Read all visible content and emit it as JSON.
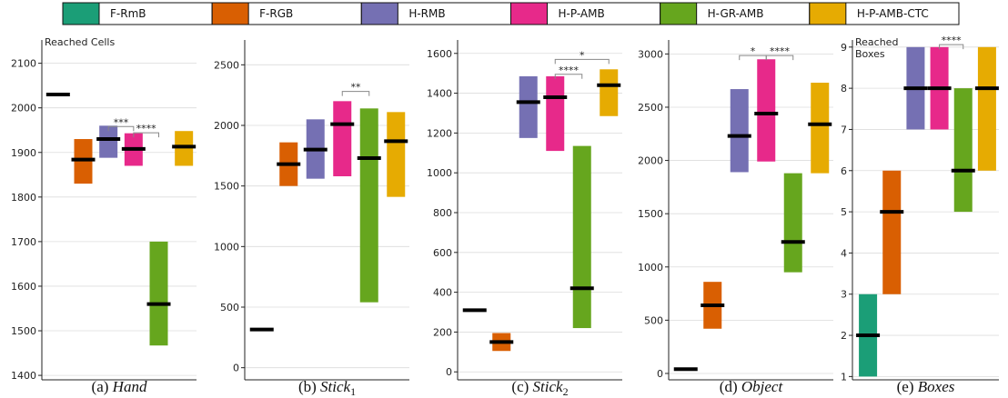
{
  "legend": [
    {
      "name": "F-RmB",
      "color": "#1b9e77"
    },
    {
      "name": "F-RGB",
      "color": "#d95f02"
    },
    {
      "name": "H-RMB",
      "color": "#7570b3"
    },
    {
      "name": "H-P-AMB",
      "color": "#e7298a"
    },
    {
      "name": "H-GR-AMB",
      "color": "#66a61e"
    },
    {
      "name": "H-P-AMB-CTC",
      "color": "#e6ab02"
    }
  ],
  "chart_data": [
    {
      "type": "bar",
      "caption": {
        "prefix": "(a) ",
        "main": "Hand",
        "sub": ""
      },
      "annotation": "Reached Cells",
      "ylim": [
        1390,
        2140
      ],
      "yticks": [
        1400,
        1500,
        1600,
        1700,
        1800,
        1900,
        2000,
        2100
      ],
      "ticklabels": [
        "1400",
        "1500",
        "1600",
        "1700",
        "1800",
        "1900",
        "2000",
        "2100"
      ],
      "series": [
        {
          "name": "F-RmB",
          "low": 2030,
          "high": 2030,
          "median": 2030
        },
        {
          "name": "F-RGB",
          "low": 1830,
          "high": 1930,
          "median": 1884
        },
        {
          "name": "H-RMB",
          "low": 1888,
          "high": 1960,
          "median": 1930
        },
        {
          "name": "H-P-AMB",
          "low": 1870,
          "high": 1943,
          "median": 1908
        },
        {
          "name": "H-GR-AMB",
          "low": 1467,
          "high": 1700,
          "median": 1560
        },
        {
          "name": "H-P-AMB-CTC",
          "low": 1870,
          "high": 1948,
          "median": 1913
        }
      ],
      "significance": [
        {
          "from": 2,
          "to": 3,
          "label": "***",
          "y": 1958
        },
        {
          "from": 3,
          "to": 4,
          "label": "****",
          "y": 1944
        }
      ]
    },
    {
      "type": "bar",
      "caption": {
        "prefix": "(b) ",
        "main": "Stick",
        "sub": "1"
      },
      "annotation": "",
      "ylim": [
        -100,
        2660
      ],
      "yticks": [
        0,
        500,
        1000,
        1500,
        2000,
        2500
      ],
      "ticklabels": [
        "0",
        "500",
        "1000",
        "1500",
        "2000",
        "2500"
      ],
      "series": [
        {
          "name": "F-RmB",
          "low": 315,
          "high": 315,
          "median": 315
        },
        {
          "name": "F-RGB",
          "low": 1500,
          "high": 1860,
          "median": 1680
        },
        {
          "name": "H-RMB",
          "low": 1560,
          "high": 2050,
          "median": 1800
        },
        {
          "name": "H-P-AMB",
          "low": 1580,
          "high": 2200,
          "median": 2010
        },
        {
          "name": "H-GR-AMB",
          "low": 540,
          "high": 2140,
          "median": 1730
        },
        {
          "name": "H-P-AMB-CTC",
          "low": 1410,
          "high": 2110,
          "median": 1870
        }
      ],
      "significance": [
        {
          "from": 3,
          "to": 4,
          "label": "**",
          "y": 2280
        }
      ]
    },
    {
      "type": "bar",
      "caption": {
        "prefix": "(c) ",
        "main": "Stick",
        "sub": "2"
      },
      "annotation": "",
      "ylim": [
        -40,
        1640
      ],
      "yticks": [
        0,
        200,
        400,
        600,
        800,
        1000,
        1200,
        1400,
        1600
      ],
      "ticklabels": [
        "0",
        "200",
        "400",
        "600",
        "800",
        "1000",
        "1200",
        "1400",
        "1600"
      ],
      "series": [
        {
          "name": "F-RmB",
          "low": 303,
          "high": 318,
          "median": 310
        },
        {
          "name": "F-RGB",
          "low": 105,
          "high": 195,
          "median": 150
        },
        {
          "name": "H-RMB",
          "low": 1175,
          "high": 1485,
          "median": 1355
        },
        {
          "name": "H-P-AMB",
          "low": 1110,
          "high": 1485,
          "median": 1380
        },
        {
          "name": "H-GR-AMB",
          "low": 220,
          "high": 1135,
          "median": 420
        },
        {
          "name": "H-P-AMB-CTC",
          "low": 1285,
          "high": 1520,
          "median": 1440
        }
      ],
      "significance": [
        {
          "from": 3,
          "to": 4,
          "label": "****",
          "y": 1495
        },
        {
          "from": 3,
          "to": 5,
          "label": "*",
          "y": 1570
        }
      ]
    },
    {
      "type": "bar",
      "caption": {
        "prefix": "(d) ",
        "main": "Object",
        "sub": ""
      },
      "annotation": "",
      "ylim": [
        -60,
        3080
      ],
      "yticks": [
        0,
        500,
        1000,
        1500,
        2000,
        2500,
        3000
      ],
      "ticklabels": [
        "0",
        "500",
        "1000",
        "1500",
        "2000",
        "2500",
        "3000"
      ],
      "series": [
        {
          "name": "F-RmB",
          "low": 40,
          "high": 40,
          "median": 40
        },
        {
          "name": "F-RGB",
          "low": 420,
          "high": 860,
          "median": 640
        },
        {
          "name": "H-RMB",
          "low": 1890,
          "high": 2670,
          "median": 2230
        },
        {
          "name": "H-P-AMB",
          "low": 1990,
          "high": 2950,
          "median": 2440
        },
        {
          "name": "H-GR-AMB",
          "low": 950,
          "high": 1880,
          "median": 1235
        },
        {
          "name": "H-P-AMB-CTC",
          "low": 1880,
          "high": 2730,
          "median": 2340
        }
      ],
      "significance": [
        {
          "from": 2,
          "to": 3,
          "label": "*",
          "y": 2985
        },
        {
          "from": 3,
          "to": 4,
          "label": "****",
          "y": 2985
        }
      ]
    },
    {
      "type": "bar",
      "caption": {
        "prefix": "(e) ",
        "main": "Boxes",
        "sub": ""
      },
      "annotation": "Reached\nBoxes",
      "ylim": [
        0.92,
        9.04
      ],
      "yticks": [
        1,
        2,
        3,
        4,
        5,
        6,
        7,
        8,
        9
      ],
      "ticklabels": [
        "1",
        "2",
        "3",
        "4",
        "5",
        "6",
        "7",
        "8",
        "9"
      ],
      "series": [
        {
          "name": "F-RmB",
          "low": 1,
          "high": 3,
          "median": 2
        },
        {
          "name": "F-RGB",
          "low": 3,
          "high": 6,
          "median": 5
        },
        {
          "name": "H-RMB",
          "low": 7,
          "high": 9,
          "median": 8
        },
        {
          "name": "H-P-AMB",
          "low": 7,
          "high": 9,
          "median": 8
        },
        {
          "name": "H-GR-AMB",
          "low": 5,
          "high": 8,
          "median": 6
        },
        {
          "name": "H-P-AMB-CTC",
          "low": 6,
          "high": 9,
          "median": 8
        }
      ],
      "significance": [
        {
          "from": 3,
          "to": 4,
          "label": "****",
          "y": 9.06
        }
      ]
    }
  ]
}
